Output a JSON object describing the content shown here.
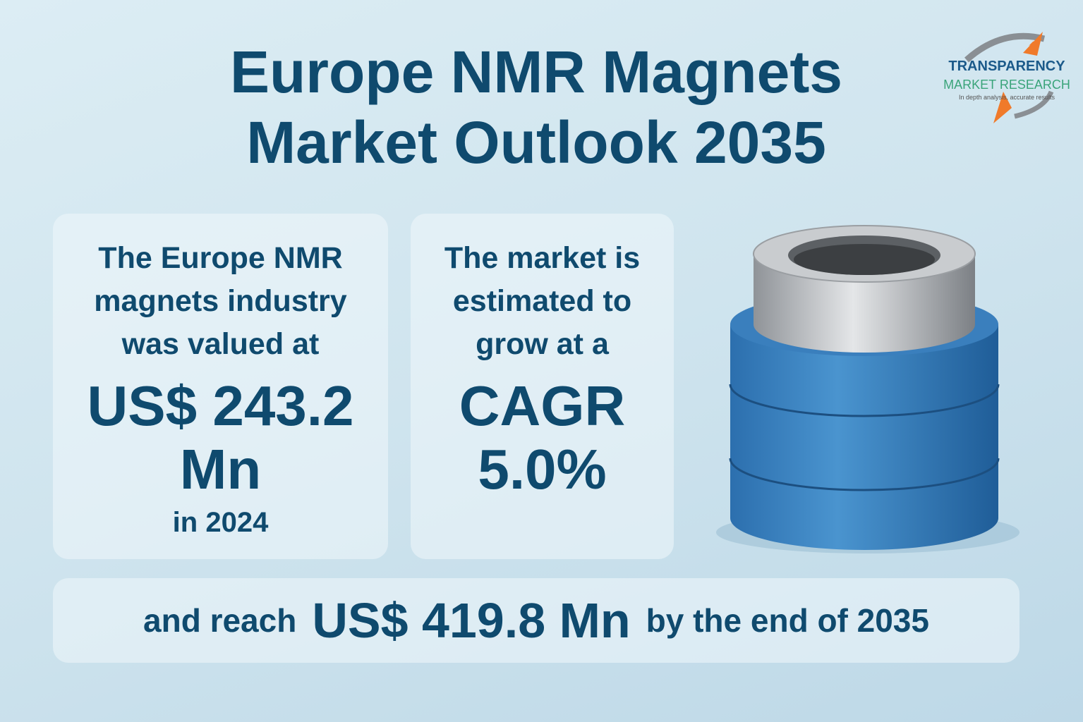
{
  "header": {
    "title_lines": [
      "Europe NMR Magnets",
      "Market Outlook 2035"
    ]
  },
  "logo": {
    "name": "TRANSPARENCY",
    "subname": "MARKET RESEARCH",
    "tagline": "In depth analysis, accurate results"
  },
  "cards": [
    {
      "intro_lines": [
        "The Europe NMR",
        "magnets industry",
        "was valued at"
      ],
      "highlight_lines": [
        "US$ 243.2",
        "Mn"
      ],
      "footer": "in 2024"
    },
    {
      "intro_lines": [
        "The market is",
        "estimated to",
        "grow at a"
      ],
      "highlight_lines": [
        "CAGR",
        "5.0%"
      ]
    }
  ],
  "banner": {
    "before": "and reach",
    "highlight": "US$ 419.8 Mn",
    "after": "by the end of 2035"
  }
}
